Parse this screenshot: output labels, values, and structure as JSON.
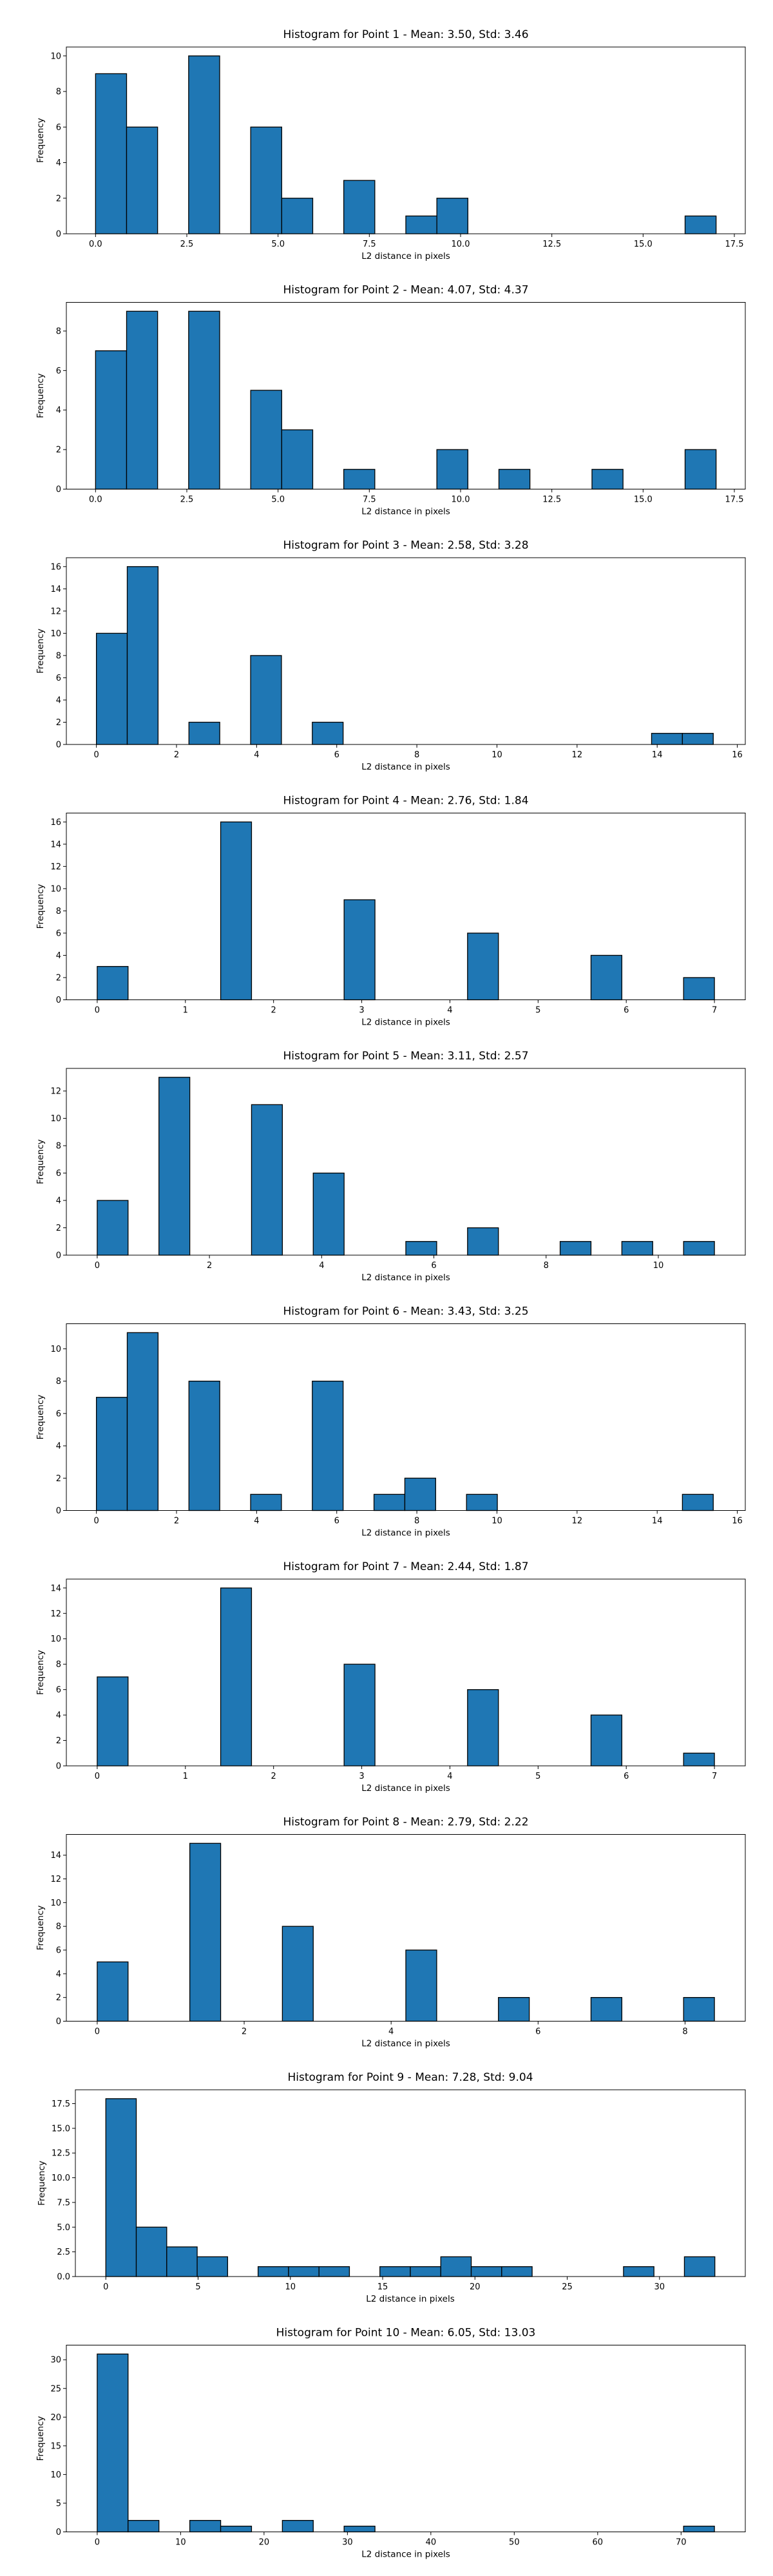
{
  "chart_data": [
    {
      "type": "bar",
      "title": "Histogram for Point 1 - Mean: 3.50, Std: 3.46",
      "xlabel": "L2 distance in pixels",
      "ylabel": "Frequency",
      "xlim": [
        -0.8,
        17.8
      ],
      "ylim": [
        0,
        10.5
      ],
      "xticks": [
        0.0,
        2.5,
        5.0,
        7.5,
        10.0,
        12.5,
        15.0,
        17.5
      ],
      "xtick_labels": [
        "0.0",
        "2.5",
        "5.0",
        "7.5",
        "10.0",
        "12.5",
        "15.0",
        "17.5"
      ],
      "yticks": [
        0,
        2,
        4,
        6,
        8,
        10
      ],
      "ytick_labels": [
        "0",
        "2",
        "4",
        "6",
        "8",
        "10"
      ],
      "bins": [
        {
          "left": 0.0,
          "right": 0.85,
          "value": 9
        },
        {
          "left": 0.85,
          "right": 1.7,
          "value": 6
        },
        {
          "left": 2.55,
          "right": 3.4,
          "value": 10
        },
        {
          "left": 4.25,
          "right": 5.1,
          "value": 6
        },
        {
          "left": 5.1,
          "right": 5.95,
          "value": 2
        },
        {
          "left": 6.8,
          "right": 7.65,
          "value": 3
        },
        {
          "left": 8.5,
          "right": 9.35,
          "value": 1
        },
        {
          "left": 9.35,
          "right": 10.2,
          "value": 2
        },
        {
          "left": 16.15,
          "right": 17.0,
          "value": 1
        }
      ]
    },
    {
      "type": "bar",
      "title": "Histogram for Point 2 - Mean: 4.07, Std: 4.37",
      "xlabel": "L2 distance in pixels",
      "ylabel": "Frequency",
      "xlim": [
        -0.8,
        17.8
      ],
      "ylim": [
        0,
        9.45
      ],
      "xticks": [
        0.0,
        2.5,
        5.0,
        7.5,
        10.0,
        12.5,
        15.0,
        17.5
      ],
      "xtick_labels": [
        "0.0",
        "2.5",
        "5.0",
        "7.5",
        "10.0",
        "12.5",
        "15.0",
        "17.5"
      ],
      "yticks": [
        0,
        2,
        4,
        6,
        8
      ],
      "ytick_labels": [
        "0",
        "2",
        "4",
        "6",
        "8"
      ],
      "bins": [
        {
          "left": 0.0,
          "right": 0.85,
          "value": 7
        },
        {
          "left": 0.85,
          "right": 1.7,
          "value": 9
        },
        {
          "left": 2.55,
          "right": 3.4,
          "value": 9
        },
        {
          "left": 4.25,
          "right": 5.1,
          "value": 5
        },
        {
          "left": 5.1,
          "right": 5.95,
          "value": 3
        },
        {
          "left": 6.8,
          "right": 7.65,
          "value": 1
        },
        {
          "left": 9.35,
          "right": 10.2,
          "value": 2
        },
        {
          "left": 11.05,
          "right": 11.9,
          "value": 1
        },
        {
          "left": 13.6,
          "right": 14.45,
          "value": 1
        },
        {
          "left": 16.15,
          "right": 17.0,
          "value": 2
        }
      ]
    },
    {
      "type": "bar",
      "title": "Histogram for Point 3 - Mean: 2.58, Std: 3.28",
      "xlabel": "L2 distance in pixels",
      "ylabel": "Frequency",
      "xlim": [
        -0.75,
        16.2
      ],
      "ylim": [
        0,
        16.8
      ],
      "xticks": [
        0,
        2,
        4,
        6,
        8,
        10,
        12,
        14,
        16
      ],
      "xtick_labels": [
        "0",
        "2",
        "4",
        "6",
        "8",
        "10",
        "12",
        "14",
        "16"
      ],
      "yticks": [
        0,
        2,
        4,
        6,
        8,
        10,
        12,
        14,
        16
      ],
      "ytick_labels": [
        "0",
        "2",
        "4",
        "6",
        "8",
        "10",
        "12",
        "14",
        "16"
      ],
      "bins": [
        {
          "left": 0.0,
          "right": 0.77,
          "value": 10
        },
        {
          "left": 0.77,
          "right": 1.54,
          "value": 16
        },
        {
          "left": 2.31,
          "right": 3.08,
          "value": 2
        },
        {
          "left": 3.85,
          "right": 4.62,
          "value": 8
        },
        {
          "left": 5.39,
          "right": 6.16,
          "value": 2
        },
        {
          "left": 13.86,
          "right": 14.63,
          "value": 1
        },
        {
          "left": 14.63,
          "right": 15.4,
          "value": 1
        }
      ]
    },
    {
      "type": "bar",
      "title": "Histogram for Point 4 - Mean: 2.76, Std: 1.84",
      "xlabel": "L2 distance in pixels",
      "ylabel": "Frequency",
      "xlim": [
        -0.35,
        7.35
      ],
      "ylim": [
        0,
        16.8
      ],
      "xticks": [
        0,
        1,
        2,
        3,
        4,
        5,
        6,
        7
      ],
      "xtick_labels": [
        "0",
        "1",
        "2",
        "3",
        "4",
        "5",
        "6",
        "7"
      ],
      "yticks": [
        0,
        2,
        4,
        6,
        8,
        10,
        12,
        14,
        16
      ],
      "ytick_labels": [
        "0",
        "2",
        "4",
        "6",
        "8",
        "10",
        "12",
        "14",
        "16"
      ],
      "bins": [
        {
          "left": 0.0,
          "right": 0.35,
          "value": 3
        },
        {
          "left": 1.4,
          "right": 1.75,
          "value": 16
        },
        {
          "left": 2.8,
          "right": 3.15,
          "value": 9
        },
        {
          "left": 4.2,
          "right": 4.55,
          "value": 6
        },
        {
          "left": 5.6,
          "right": 5.95,
          "value": 4
        },
        {
          "left": 6.65,
          "right": 7.0,
          "value": 2
        }
      ]
    },
    {
      "type": "bar",
      "title": "Histogram for Point 5 - Mean: 3.11, Std: 2.57",
      "xlabel": "L2 distance in pixels",
      "ylabel": "Frequency",
      "xlim": [
        -0.55,
        11.55
      ],
      "ylim": [
        0,
        13.65
      ],
      "xticks": [
        0,
        2,
        4,
        6,
        8,
        10
      ],
      "xtick_labels": [
        "0",
        "2",
        "4",
        "6",
        "8",
        "10"
      ],
      "yticks": [
        0,
        2,
        4,
        6,
        8,
        10,
        12
      ],
      "ytick_labels": [
        "0",
        "2",
        "4",
        "6",
        "8",
        "10",
        "12"
      ],
      "bins": [
        {
          "left": 0.0,
          "right": 0.55,
          "value": 4
        },
        {
          "left": 1.1,
          "right": 1.65,
          "value": 13
        },
        {
          "left": 2.75,
          "right": 3.3,
          "value": 11
        },
        {
          "left": 3.85,
          "right": 4.4,
          "value": 6
        },
        {
          "left": 5.5,
          "right": 6.05,
          "value": 1
        },
        {
          "left": 6.6,
          "right": 7.15,
          "value": 2
        },
        {
          "left": 8.25,
          "right": 8.8,
          "value": 1
        },
        {
          "left": 9.35,
          "right": 9.9,
          "value": 1
        },
        {
          "left": 10.45,
          "right": 11.0,
          "value": 1
        }
      ]
    },
    {
      "type": "bar",
      "title": "Histogram for Point 6 - Mean: 3.43, Std: 3.25",
      "xlabel": "L2 distance in pixels",
      "ylabel": "Frequency",
      "xlim": [
        -0.75,
        16.2
      ],
      "ylim": [
        0,
        11.55
      ],
      "xticks": [
        0,
        2,
        4,
        6,
        8,
        10,
        12,
        14,
        16
      ],
      "xtick_labels": [
        "0",
        "2",
        "4",
        "6",
        "8",
        "10",
        "12",
        "14",
        "16"
      ],
      "yticks": [
        0,
        2,
        4,
        6,
        8,
        10
      ],
      "ytick_labels": [
        "0",
        "2",
        "4",
        "6",
        "8",
        "10"
      ],
      "bins": [
        {
          "left": 0.0,
          "right": 0.77,
          "value": 7
        },
        {
          "left": 0.77,
          "right": 1.54,
          "value": 11
        },
        {
          "left": 2.31,
          "right": 3.08,
          "value": 8
        },
        {
          "left": 3.85,
          "right": 4.62,
          "value": 1
        },
        {
          "left": 5.39,
          "right": 6.16,
          "value": 8
        },
        {
          "left": 6.93,
          "right": 7.7,
          "value": 1
        },
        {
          "left": 7.7,
          "right": 8.47,
          "value": 2
        },
        {
          "left": 9.24,
          "right": 10.01,
          "value": 1
        },
        {
          "left": 14.63,
          "right": 15.4,
          "value": 1
        }
      ]
    },
    {
      "type": "bar",
      "title": "Histogram for Point 7 - Mean: 2.44, Std: 1.87",
      "xlabel": "L2 distance in pixels",
      "ylabel": "Frequency",
      "xlim": [
        -0.35,
        7.35
      ],
      "ylim": [
        0,
        14.7
      ],
      "xticks": [
        0,
        1,
        2,
        3,
        4,
        5,
        6,
        7
      ],
      "xtick_labels": [
        "0",
        "1",
        "2",
        "3",
        "4",
        "5",
        "6",
        "7"
      ],
      "yticks": [
        0,
        2,
        4,
        6,
        8,
        10,
        12,
        14
      ],
      "ytick_labels": [
        "0",
        "2",
        "4",
        "6",
        "8",
        "10",
        "12",
        "14"
      ],
      "bins": [
        {
          "left": 0.0,
          "right": 0.35,
          "value": 7
        },
        {
          "left": 1.4,
          "right": 1.75,
          "value": 14
        },
        {
          "left": 2.8,
          "right": 3.15,
          "value": 8
        },
        {
          "left": 4.2,
          "right": 4.55,
          "value": 6
        },
        {
          "left": 5.6,
          "right": 5.95,
          "value": 4
        },
        {
          "left": 6.65,
          "right": 7.0,
          "value": 1
        }
      ]
    },
    {
      "type": "bar",
      "title": "Histogram for Point 8 - Mean: 2.79, Std: 2.22",
      "xlabel": "L2 distance in pixels",
      "ylabel": "Frequency",
      "xlim": [
        -0.42,
        8.82
      ],
      "ylim": [
        0,
        15.75
      ],
      "xticks": [
        0,
        2,
        4,
        6,
        8
      ],
      "xtick_labels": [
        "0",
        "2",
        "4",
        "6",
        "8"
      ],
      "yticks": [
        0,
        2,
        4,
        6,
        8,
        10,
        12,
        14
      ],
      "ytick_labels": [
        "0",
        "2",
        "4",
        "6",
        "8",
        "10",
        "12",
        "14"
      ],
      "bins": [
        {
          "left": 0.0,
          "right": 0.42,
          "value": 5
        },
        {
          "left": 1.26,
          "right": 1.68,
          "value": 15
        },
        {
          "left": 2.52,
          "right": 2.94,
          "value": 8
        },
        {
          "left": 4.2,
          "right": 4.62,
          "value": 6
        },
        {
          "left": 5.46,
          "right": 5.88,
          "value": 2
        },
        {
          "left": 6.72,
          "right": 7.14,
          "value": 2
        },
        {
          "left": 7.98,
          "right": 8.4,
          "value": 2
        }
      ]
    },
    {
      "type": "bar",
      "title": "Histogram for Point 9 - Mean: 7.28, Std: 9.04",
      "xlabel": "L2 distance in pixels",
      "ylabel": "Frequency",
      "xlim": [
        -1.65,
        34.65
      ],
      "ylim": [
        0,
        18.9
      ],
      "xticks": [
        0,
        5,
        10,
        15,
        20,
        25,
        30
      ],
      "xtick_labels": [
        "0",
        "5",
        "10",
        "15",
        "20",
        "25",
        "30"
      ],
      "yticks": [
        0.0,
        2.5,
        5.0,
        7.5,
        10.0,
        12.5,
        15.0,
        17.5
      ],
      "ytick_labels": [
        "0.0",
        "2.5",
        "5.0",
        "7.5",
        "10.0",
        "12.5",
        "15.0",
        "17.5"
      ],
      "bins": [
        {
          "left": 0.0,
          "right": 1.65,
          "value": 18
        },
        {
          "left": 1.65,
          "right": 3.3,
          "value": 5
        },
        {
          "left": 3.3,
          "right": 4.95,
          "value": 3
        },
        {
          "left": 4.95,
          "right": 6.6,
          "value": 2
        },
        {
          "left": 8.25,
          "right": 9.9,
          "value": 1
        },
        {
          "left": 9.9,
          "right": 11.55,
          "value": 1
        },
        {
          "left": 11.55,
          "right": 13.2,
          "value": 1
        },
        {
          "left": 14.85,
          "right": 16.5,
          "value": 1
        },
        {
          "left": 16.5,
          "right": 18.15,
          "value": 1
        },
        {
          "left": 18.15,
          "right": 19.8,
          "value": 2
        },
        {
          "left": 19.8,
          "right": 21.45,
          "value": 1
        },
        {
          "left": 21.45,
          "right": 23.1,
          "value": 1
        },
        {
          "left": 28.05,
          "right": 29.7,
          "value": 1
        },
        {
          "left": 31.35,
          "right": 33.0,
          "value": 2
        }
      ]
    },
    {
      "type": "bar",
      "title": "Histogram for Point 10 - Mean: 6.05, Std: 13.03",
      "xlabel": "L2 distance in pixels",
      "ylabel": "Frequency",
      "xlim": [
        -3.7,
        77.7
      ],
      "ylim": [
        0,
        32.55
      ],
      "xticks": [
        0,
        10,
        20,
        30,
        40,
        50,
        60,
        70
      ],
      "xtick_labels": [
        "0",
        "10",
        "20",
        "30",
        "40",
        "50",
        "60",
        "70"
      ],
      "yticks": [
        0,
        5,
        10,
        15,
        20,
        25,
        30
      ],
      "ytick_labels": [
        "0",
        "5",
        "10",
        "15",
        "20",
        "25",
        "30"
      ],
      "bins": [
        {
          "left": 0.0,
          "right": 3.7,
          "value": 31
        },
        {
          "left": 3.7,
          "right": 7.4,
          "value": 2
        },
        {
          "left": 11.1,
          "right": 14.8,
          "value": 2
        },
        {
          "left": 14.8,
          "right": 18.5,
          "value": 1
        },
        {
          "left": 22.2,
          "right": 25.9,
          "value": 2
        },
        {
          "left": 29.6,
          "right": 33.3,
          "value": 1
        },
        {
          "left": 70.3,
          "right": 74.0,
          "value": 1
        }
      ]
    }
  ],
  "colors": {
    "bar_fill": "#1f77b4",
    "bar_edge": "#000000",
    "axis": "#000000",
    "text": "#000000",
    "background": "#ffffff"
  }
}
